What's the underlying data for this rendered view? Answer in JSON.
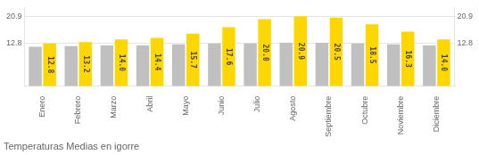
{
  "chart_data": {
    "type": "bar",
    "title": "Temperaturas Medias en igorre",
    "categories": [
      "Enero",
      "Febrero",
      "Marzo",
      "Abril",
      "Mayo",
      "Junio",
      "Julio",
      "Agosto",
      "Septiembre",
      "Octubre",
      "Noviembre",
      "Diciembre"
    ],
    "series": [
      {
        "color": "#C0C0C0",
        "values": [
          11.8,
          12.0,
          12.2,
          12.2,
          12.5,
          12.8,
          12.8,
          13.0,
          13.0,
          12.8,
          12.5,
          12.2
        ]
      },
      {
        "color": "#FFD700",
        "values": [
          12.8,
          13.2,
          14.0,
          14.4,
          15.7,
          17.6,
          20.0,
          20.9,
          20.5,
          18.5,
          16.3,
          14.0
        ],
        "data_labels": true,
        "value_labels": [
          "12.8",
          "13.2",
          "14.0",
          "14.4",
          "15.7",
          "17.6",
          "20.0",
          "20.9",
          "20.5",
          "18.5",
          "16.3",
          "14.0"
        ]
      }
    ],
    "ylim": [
      0,
      23.5
    ],
    "yticks": [
      12.8,
      20.9
    ],
    "y2lim": [
      0,
      23.5
    ],
    "y2ticks": [
      12.8,
      20.9
    ],
    "grid": true
  }
}
